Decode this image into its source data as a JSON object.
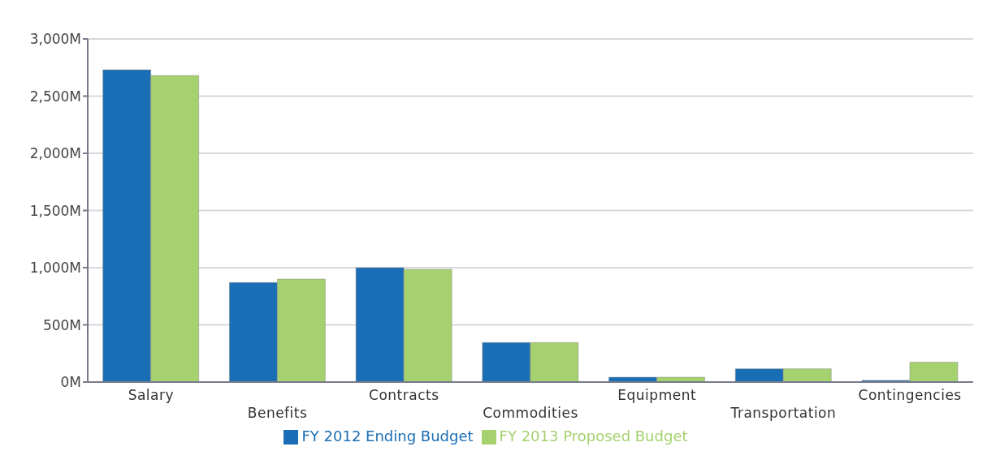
{
  "chart_data": {
    "type": "bar",
    "categories": [
      "Salary",
      "Benefits",
      "Contracts",
      "Commodities",
      "Equipment",
      "Transportation",
      "Contingencies"
    ],
    "series": [
      {
        "name": "FY 2012 Ending Budget",
        "color": "#1a6eb5",
        "values": [
          2730,
          870,
          1000,
          345,
          42,
          116,
          15
        ]
      },
      {
        "name": "FY 2013 Proposed Budget",
        "color": "#a5d16f",
        "values": [
          2680,
          900,
          985,
          345,
          42,
          116,
          173
        ]
      }
    ],
    "ylim": [
      0,
      3000
    ],
    "yticks": [
      {
        "value": 0,
        "label": "0M"
      },
      {
        "value": 500,
        "label": "500M"
      },
      {
        "value": 1000,
        "label": "1,000M"
      },
      {
        "value": 1500,
        "label": "1,500M"
      },
      {
        "value": 2000,
        "label": "2,000M"
      },
      {
        "value": 2500,
        "label": "2,500M"
      },
      {
        "value": 3000,
        "label": "3,000M"
      }
    ],
    "grid": "y",
    "legend": "bottom"
  }
}
